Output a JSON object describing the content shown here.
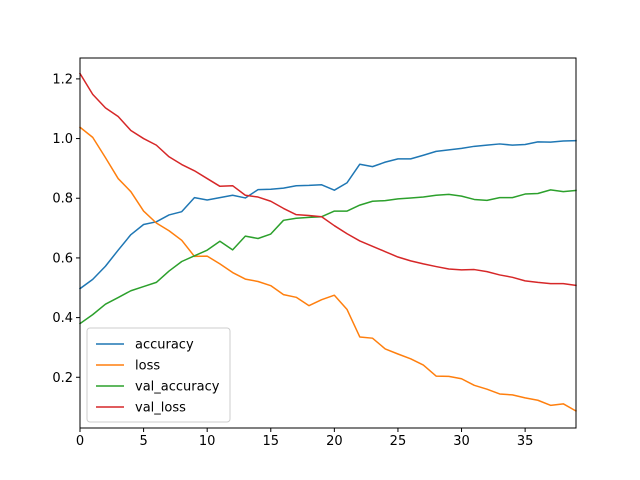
{
  "chart_data": {
    "type": "line",
    "title": "",
    "xlabel": "",
    "ylabel": "",
    "xlim": [
      0,
      39
    ],
    "ylim": [
      0.03,
      1.27
    ],
    "grid": false,
    "legend_position": "lower-left",
    "x_ticks": [
      0,
      5,
      10,
      15,
      20,
      25,
      30,
      35
    ],
    "x_tick_labels": [
      "0",
      "5",
      "10",
      "15",
      "20",
      "25",
      "30",
      "35"
    ],
    "y_ticks": [
      0.2,
      0.4,
      0.6,
      0.8,
      1.0,
      1.2
    ],
    "y_tick_labels": [
      "0.2",
      "0.4",
      "0.6",
      "0.8",
      "1.0",
      "1.2"
    ],
    "x": [
      0,
      1,
      2,
      3,
      4,
      5,
      6,
      7,
      8,
      9,
      10,
      11,
      12,
      13,
      14,
      15,
      16,
      17,
      18,
      19,
      20,
      21,
      22,
      23,
      24,
      25,
      26,
      27,
      28,
      29,
      30,
      31,
      32,
      33,
      34,
      35,
      36,
      37,
      38,
      39
    ],
    "series": [
      {
        "name": "accuracy",
        "color": "#1f77b4",
        "values": [
          0.497,
          0.528,
          0.572,
          0.626,
          0.678,
          0.712,
          0.721,
          0.744,
          0.755,
          0.802,
          0.794,
          0.802,
          0.81,
          0.801,
          0.829,
          0.83,
          0.834,
          0.842,
          0.843,
          0.845,
          0.827,
          0.852,
          0.914,
          0.906,
          0.921,
          0.932,
          0.932,
          0.944,
          0.957,
          0.962,
          0.967,
          0.974,
          0.978,
          0.982,
          0.978,
          0.98,
          0.989,
          0.988,
          0.992,
          0.993
        ]
      },
      {
        "name": "loss",
        "color": "#ff7f0e",
        "values": [
          1.038,
          1.004,
          0.936,
          0.866,
          0.822,
          0.757,
          0.717,
          0.691,
          0.659,
          0.605,
          0.606,
          0.58,
          0.551,
          0.529,
          0.521,
          0.507,
          0.477,
          0.468,
          0.44,
          0.46,
          0.475,
          0.427,
          0.335,
          0.331,
          0.295,
          0.278,
          0.262,
          0.241,
          0.204,
          0.203,
          0.195,
          0.173,
          0.16,
          0.144,
          0.141,
          0.131,
          0.123,
          0.106,
          0.111,
          0.087
        ]
      },
      {
        "name": "val_accuracy",
        "color": "#2ca02c",
        "values": [
          0.38,
          0.41,
          0.445,
          0.467,
          0.49,
          0.504,
          0.518,
          0.556,
          0.588,
          0.607,
          0.626,
          0.656,
          0.627,
          0.673,
          0.665,
          0.68,
          0.726,
          0.733,
          0.736,
          0.738,
          0.757,
          0.757,
          0.777,
          0.79,
          0.792,
          0.798,
          0.801,
          0.804,
          0.81,
          0.813,
          0.807,
          0.796,
          0.793,
          0.802,
          0.802,
          0.814,
          0.816,
          0.828,
          0.822,
          0.826
        ]
      },
      {
        "name": "val_loss",
        "color": "#d62728",
        "values": [
          1.218,
          1.148,
          1.103,
          1.074,
          1.027,
          1.0,
          0.978,
          0.939,
          0.913,
          0.892,
          0.866,
          0.84,
          0.842,
          0.81,
          0.804,
          0.79,
          0.766,
          0.745,
          0.742,
          0.738,
          0.708,
          0.681,
          0.657,
          0.639,
          0.621,
          0.603,
          0.59,
          0.58,
          0.571,
          0.563,
          0.56,
          0.561,
          0.554,
          0.543,
          0.535,
          0.523,
          0.518,
          0.514,
          0.514,
          0.508
        ]
      }
    ]
  }
}
